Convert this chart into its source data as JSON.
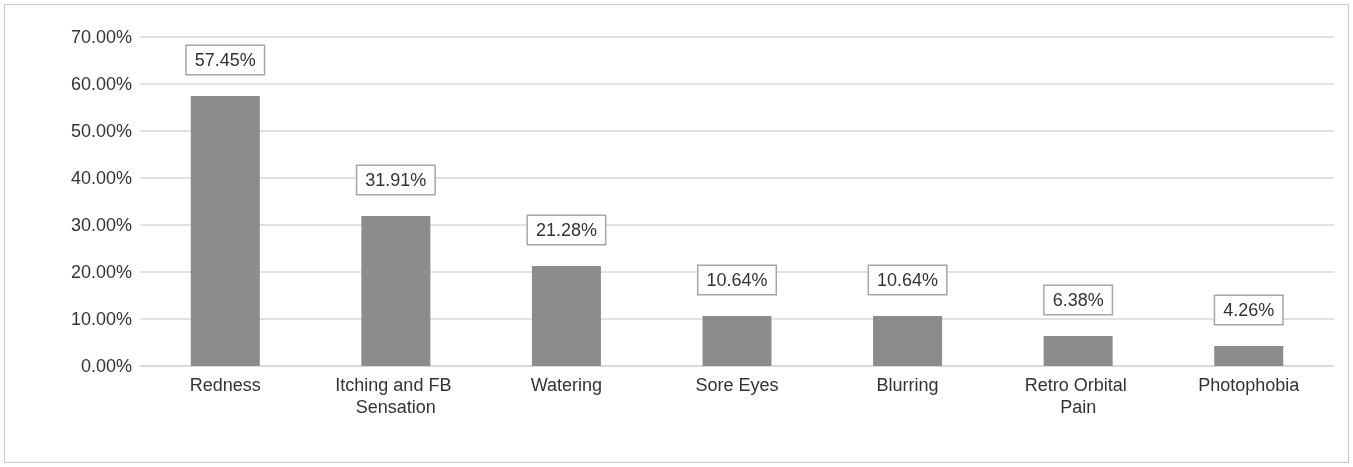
{
  "chart_data": {
    "type": "bar",
    "categories": [
      "Redness",
      "Itching and FB Sensation",
      "Watering",
      "Sore Eyes",
      "Blurring",
      "Retro Orbital Pain",
      "Photophobia"
    ],
    "values": [
      57.45,
      31.91,
      21.28,
      10.64,
      10.64,
      6.38,
      4.26
    ],
    "value_labels": [
      "57.45%",
      "31.91%",
      "21.28%",
      "10.64%",
      "10.64%",
      "6.38%",
      "4.26%"
    ],
    "color": "#8c8c8c",
    "ylim": [
      0,
      70
    ],
    "yticks": [
      {
        "value": 0,
        "label": "0.00%"
      },
      {
        "value": 10,
        "label": "10.00%"
      },
      {
        "value": 20,
        "label": "20.00%"
      },
      {
        "value": 30,
        "label": "30.00%"
      },
      {
        "value": 40,
        "label": "40.00%"
      },
      {
        "value": 50,
        "label": "50.00%"
      },
      {
        "value": 60,
        "label": "60.00%"
      },
      {
        "value": 70,
        "label": "70.00%"
      }
    ],
    "grid": "y"
  }
}
